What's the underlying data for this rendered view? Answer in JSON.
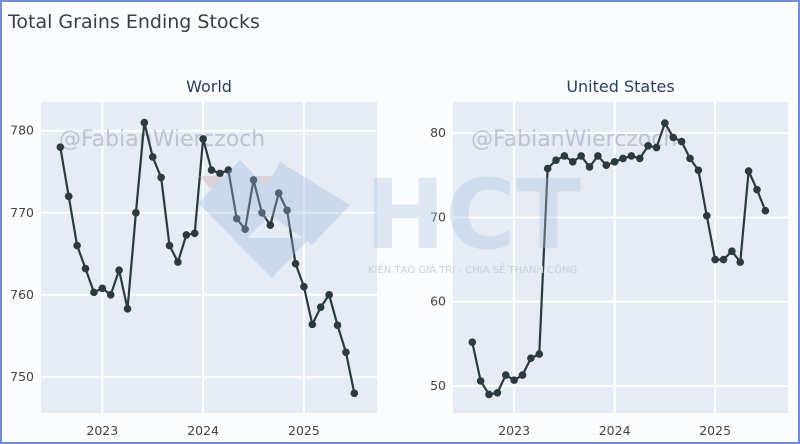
{
  "chart_data": {
    "type": "line",
    "title": "Total Grains Ending Stocks",
    "watermark": {
      "author": "@FabianWierczoch",
      "logo": "HCT",
      "tagline": "KIẾN TẠO GIÁ TRỊ - CHIA SẺ THÀNH CÔNG"
    },
    "x_dates": [
      "2022-08",
      "2022-09",
      "2022-10",
      "2022-11",
      "2022-12",
      "2023-01",
      "2023-02",
      "2023-03",
      "2023-04",
      "2023-05",
      "2023-06",
      "2023-07",
      "2023-08",
      "2023-09",
      "2023-10",
      "2023-11",
      "2023-12",
      "2024-01",
      "2024-02",
      "2024-03",
      "2024-04",
      "2024-05",
      "2024-06",
      "2024-07",
      "2024-08",
      "2024-09",
      "2024-10",
      "2024-11",
      "2024-12",
      "2025-01",
      "2025-02",
      "2025-03",
      "2025-04",
      "2025-05",
      "2025-06",
      "2025-07"
    ],
    "x_ticks": [
      "2023",
      "2024",
      "2025"
    ],
    "grid": true,
    "line_color": "#2b3a3f",
    "panels": [
      {
        "name": "World",
        "ylim": [
          745.6,
          783.5
        ],
        "y_ticks": [
          750,
          760,
          770,
          780
        ],
        "values": [
          778,
          772,
          766,
          763.2,
          760.3,
          760.8,
          760,
          763,
          758.3,
          770,
          781,
          776.8,
          774.3,
          766,
          764,
          767.3,
          767.5,
          779,
          775.2,
          774.8,
          775.2,
          769.3,
          768,
          774,
          770,
          768.5,
          772.4,
          770.3,
          763.8,
          761,
          756.4,
          758.5,
          760,
          756.3,
          753,
          748
        ]
      },
      {
        "name": "United States",
        "ylim": [
          46.8,
          83.7
        ],
        "y_ticks": [
          50,
          60,
          70,
          80
        ],
        "values": [
          55.2,
          50.6,
          49,
          49.2,
          51.3,
          50.7,
          51.3,
          53.3,
          53.8,
          75.8,
          76.8,
          77.3,
          76.6,
          77.3,
          76,
          77.3,
          76.2,
          76.6,
          77,
          77.3,
          77,
          78.5,
          78.3,
          81.2,
          79.5,
          79,
          77,
          75.6,
          70.2,
          65,
          65,
          66,
          64.7,
          75.5,
          73.3,
          70.8
        ]
      }
    ]
  }
}
